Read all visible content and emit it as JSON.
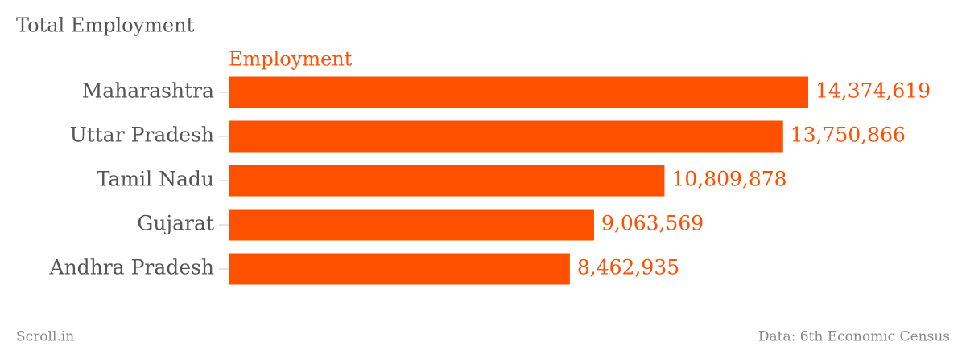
{
  "chart_data": {
    "type": "bar",
    "orientation": "horizontal",
    "title": "Total Employment",
    "categories": [
      "Maharashtra",
      "Uttar Pradesh",
      "Tamil Nadu",
      "Gujarat",
      "Andhra Pradesh"
    ],
    "series": [
      {
        "name": "Employment",
        "color": "#ff5000",
        "values": [
          14374619,
          13750866,
          10809878,
          9063569,
          8462935
        ],
        "value_labels": [
          "14,374,619",
          "13,750,866",
          "10,809,878",
          "9,063,569",
          "8,462,935"
        ]
      }
    ],
    "credit": "Scroll.in",
    "source": "Data: 6th Economic Census"
  }
}
